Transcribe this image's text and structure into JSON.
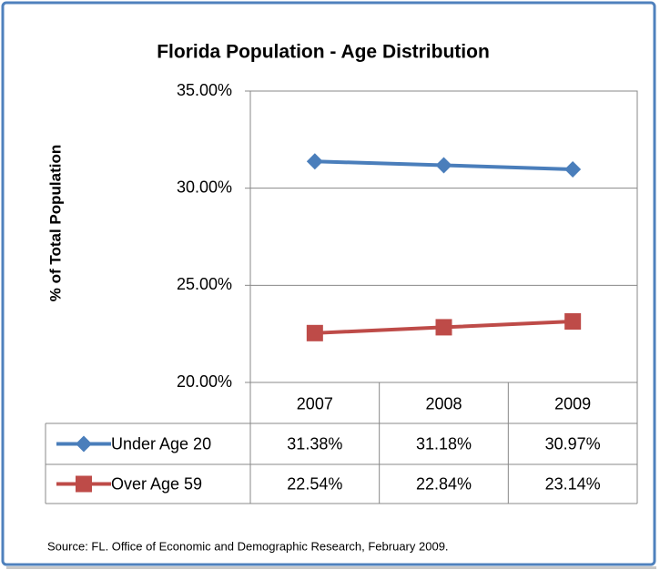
{
  "chart_data": {
    "type": "line",
    "title": "Florida Population - Age Distribution",
    "y_label": "% of Total Population",
    "source": "Source: FL.  Office of Economic and Demographic Research, February 2009.",
    "categories": [
      "2007",
      "2008",
      "2009"
    ],
    "series": [
      {
        "name": "Under Age 20",
        "color": "#4a7ebb",
        "marker": "diamond",
        "values": [
          31.38,
          31.18,
          30.97
        ],
        "value_labels": [
          "31.38%",
          "31.18%",
          "30.97%"
        ]
      },
      {
        "name": "Over Age 59",
        "color": "#be4b48",
        "marker": "square",
        "values": [
          22.54,
          22.84,
          23.14
        ],
        "value_labels": [
          "22.54%",
          "22.84%",
          "23.14%"
        ]
      }
    ],
    "ylim": [
      20,
      35
    ],
    "yticks": [
      {
        "value": 20,
        "label": "20.00%"
      },
      {
        "value": 25,
        "label": "25.00%"
      },
      {
        "value": 30,
        "label": "30.00%"
      },
      {
        "value": 35,
        "label": "35.00%"
      }
    ],
    "grid": true
  }
}
